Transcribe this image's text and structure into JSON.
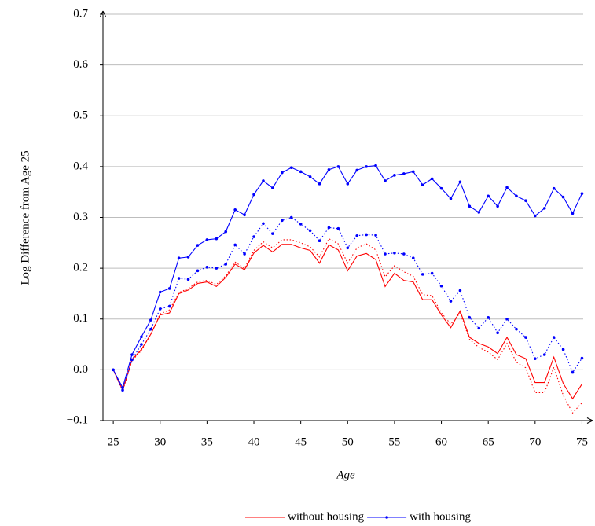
{
  "chart_data": {
    "type": "line",
    "xlabel": "Age",
    "ylabel": "Log Difference from Age 25",
    "x": [
      25,
      26,
      27,
      28,
      29,
      30,
      31,
      32,
      33,
      34,
      35,
      36,
      37,
      38,
      39,
      40,
      41,
      42,
      43,
      44,
      45,
      46,
      47,
      48,
      49,
      50,
      51,
      52,
      53,
      54,
      55,
      56,
      57,
      58,
      59,
      60,
      61,
      62,
      63,
      64,
      65,
      66,
      67,
      68,
      69,
      70,
      71,
      72,
      73,
      74,
      75
    ],
    "series": [
      {
        "name": "without housing",
        "color": "#ff0000",
        "dash": "solid",
        "marker": false,
        "values": [
          0,
          -0.04,
          0.02,
          0.04,
          0.07,
          0.108,
          0.112,
          0.15,
          0.157,
          0.17,
          0.173,
          0.164,
          0.182,
          0.208,
          0.197,
          0.23,
          0.245,
          0.232,
          0.247,
          0.247,
          0.24,
          0.235,
          0.21,
          0.246,
          0.236,
          0.195,
          0.224,
          0.229,
          0.217,
          0.164,
          0.19,
          0.176,
          0.173,
          0.138,
          0.138,
          0.108,
          0.083,
          0.116,
          0.064,
          0.052,
          0.045,
          0.032,
          0.064,
          0.03,
          0.022,
          -0.025,
          -0.025,
          0.025,
          -0.027,
          -0.057,
          -0.028
        ]
      },
      {
        "color": "#ff0000",
        "dash": "dotted",
        "marker": false,
        "values": [
          0,
          -0.042,
          0.018,
          0.038,
          0.07,
          0.11,
          0.118,
          0.152,
          0.16,
          0.173,
          0.176,
          0.168,
          0.185,
          0.212,
          0.2,
          0.235,
          0.252,
          0.24,
          0.256,
          0.256,
          0.25,
          0.242,
          0.222,
          0.258,
          0.248,
          0.21,
          0.24,
          0.248,
          0.236,
          0.183,
          0.205,
          0.193,
          0.184,
          0.148,
          0.146,
          0.112,
          0.09,
          0.112,
          0.06,
          0.044,
          0.035,
          0.02,
          0.052,
          0.015,
          0.004,
          -0.045,
          -0.045,
          0.005,
          -0.05,
          -0.085,
          -0.065
        ]
      },
      {
        "name": "with housing",
        "color": "#0000ff",
        "dash": "solid",
        "marker": true,
        "values": [
          0,
          -0.035,
          0.03,
          0.065,
          0.098,
          0.153,
          0.16,
          0.22,
          0.222,
          0.245,
          0.256,
          0.258,
          0.272,
          0.315,
          0.305,
          0.345,
          0.372,
          0.358,
          0.388,
          0.398,
          0.39,
          0.38,
          0.366,
          0.394,
          0.4,
          0.366,
          0.393,
          0.4,
          0.402,
          0.372,
          0.383,
          0.386,
          0.39,
          0.364,
          0.376,
          0.357,
          0.337,
          0.37,
          0.322,
          0.31,
          0.342,
          0.322,
          0.359,
          0.342,
          0.333,
          0.303,
          0.318,
          0.357,
          0.34,
          0.308,
          0.347
        ]
      },
      {
        "color": "#0000ff",
        "dash": "dotted",
        "marker": true,
        "values": [
          0,
          -0.04,
          0.02,
          0.05,
          0.08,
          0.12,
          0.125,
          0.18,
          0.178,
          0.195,
          0.202,
          0.2,
          0.208,
          0.246,
          0.228,
          0.262,
          0.288,
          0.268,
          0.294,
          0.3,
          0.287,
          0.274,
          0.254,
          0.28,
          0.278,
          0.24,
          0.264,
          0.266,
          0.265,
          0.228,
          0.23,
          0.228,
          0.22,
          0.188,
          0.19,
          0.165,
          0.135,
          0.156,
          0.103,
          0.082,
          0.103,
          0.073,
          0.1,
          0.08,
          0.064,
          0.022,
          0.03,
          0.064,
          0.04,
          -0.005,
          0.023
        ]
      }
    ],
    "xlim": [
      23.9,
      75.8
    ],
    "xticks": [
      25,
      30,
      35,
      40,
      45,
      50,
      55,
      60,
      65,
      70,
      75
    ],
    "ylim": [
      -0.1,
      0.7
    ],
    "yticks": [
      {
        "value": -0.1,
        "label": "−0.1"
      },
      {
        "value": 0,
        "label": "0.0"
      },
      0.1,
      0.2,
      0.3,
      0.4,
      0.5,
      0.6,
      0.7
    ],
    "grid": true,
    "legend": "below-right"
  }
}
